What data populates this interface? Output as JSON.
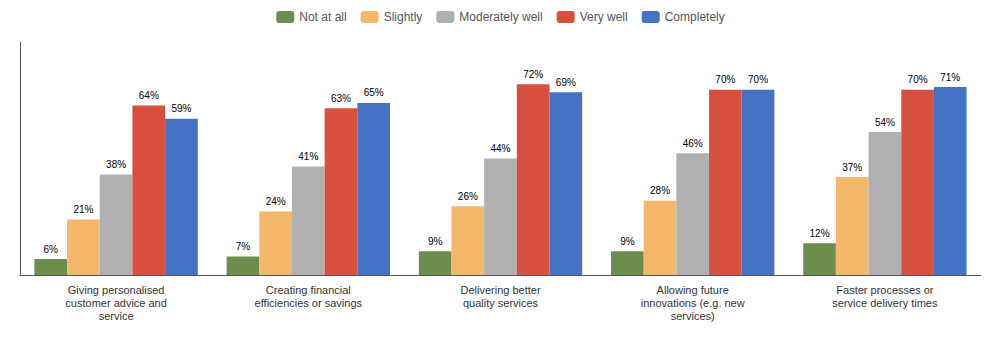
{
  "chart_data": {
    "type": "bar",
    "categories": [
      "Giving personalised\ncustomer advice and\nservice",
      "Creating financial\nefficiencies or savings",
      "Delivering better\nquality services",
      "Allowing future\ninnovations (e.g. new\nservices)",
      "Faster processes or\nservice delivery times"
    ],
    "series": [
      {
        "name": "Not at all",
        "color": "#6b8e4e",
        "values": [
          6,
          7,
          9,
          9,
          12
        ],
        "value_labels": [
          "6%",
          "7%",
          "9%",
          "9%",
          "12%"
        ]
      },
      {
        "name": "Slightly",
        "color": "#f5b86a",
        "values": [
          21,
          24,
          26,
          28,
          37
        ],
        "value_labels": [
          "21%",
          "24%",
          "26%",
          "28%",
          "37%"
        ]
      },
      {
        "name": "Moderately well",
        "color": "#b0b0b0",
        "values": [
          38,
          41,
          44,
          46,
          54
        ],
        "value_labels": [
          "38%",
          "41%",
          "44%",
          "46%",
          "54%"
        ]
      },
      {
        "name": "Very well",
        "color": "#d94f3d",
        "values": [
          64,
          63,
          72,
          70,
          70
        ],
        "value_labels": [
          "64%",
          "63%",
          "72%",
          "70%",
          "70%"
        ]
      },
      {
        "name": "Completely",
        "color": "#4472c4",
        "values": [
          59,
          65,
          69,
          70,
          71
        ],
        "value_labels": [
          "59%",
          "65%",
          "69%",
          "70%",
          "71%"
        ]
      }
    ],
    "ylim": [
      0,
      88
    ],
    "grid": false,
    "legend": "top",
    "data_labels": true,
    "tick_labels": "x"
  }
}
